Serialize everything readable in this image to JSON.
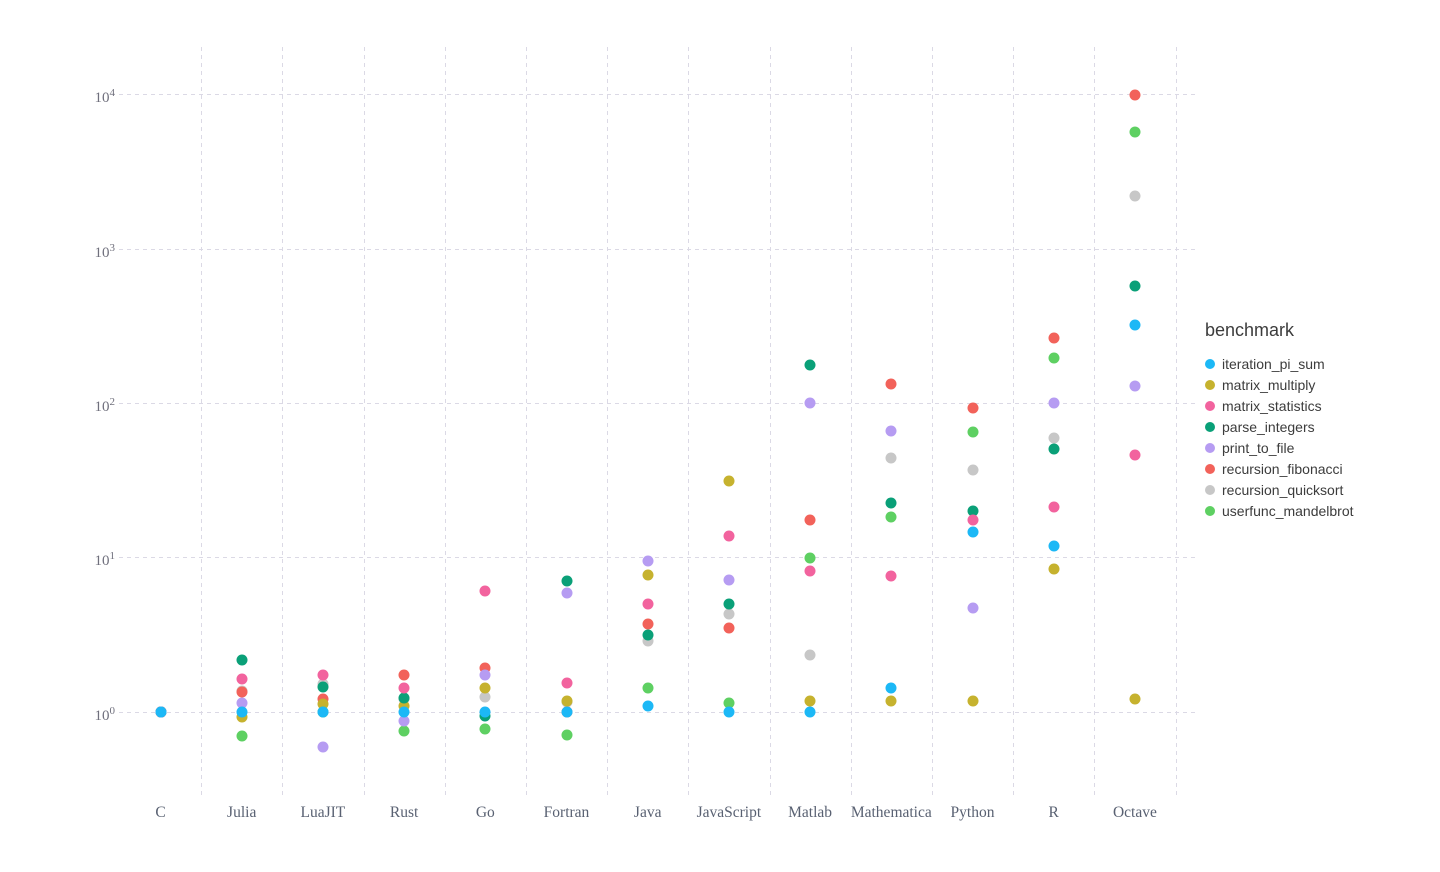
{
  "chart_data": {
    "type": "scatter",
    "title": "",
    "x_axis": {
      "categories": [
        "C",
        "Julia",
        "LuaJIT",
        "Rust",
        "Go",
        "Fortran",
        "Java",
        "JavaScript",
        "Matlab",
        "Mathematica",
        "Python",
        "R",
        "Octave"
      ]
    },
    "y_axis": {
      "scale": "log10",
      "ticks": [
        {
          "base": "10",
          "exp": "0"
        },
        {
          "base": "10",
          "exp": "1"
        },
        {
          "base": "10",
          "exp": "2"
        },
        {
          "base": "10",
          "exp": "3"
        },
        {
          "base": "10",
          "exp": "4"
        }
      ],
      "range_exponents": [
        0,
        4
      ]
    },
    "legend": {
      "title": "benchmark",
      "position": "right"
    },
    "grid": "dashed",
    "series": [
      {
        "name": "iteration_pi_sum",
        "color": "#1cb8f6",
        "values": [
          1.0,
          1.0,
          1.0,
          1.0,
          1.0,
          1.0,
          1.08,
          1.0,
          1.0,
          1.43,
          14.6,
          11.8,
          320
        ]
      },
      {
        "name": "matrix_multiply",
        "color": "#c6b22e",
        "values": [
          1.0,
          0.92,
          1.12,
          1.09,
          1.43,
          1.17,
          7.7,
          31.0,
          1.17,
          1.17,
          1.17,
          8.4,
          1.2
        ]
      },
      {
        "name": "matrix_statistics",
        "color": "#f2639e",
        "values": [
          1.0,
          1.62,
          1.73,
          1.43,
          6.0,
          1.54,
          5.0,
          13.7,
          8.1,
          7.5,
          17.5,
          21.0,
          46
        ]
      },
      {
        "name": "parse_integers",
        "color": "#0aa078",
        "values": [
          1.0,
          2.16,
          1.45,
          1.23,
          0.94,
          7.0,
          3.15,
          5.0,
          177,
          22.4,
          20.0,
          50.0,
          574
        ]
      },
      {
        "name": "print_to_file",
        "color": "#b69cf2",
        "values": [
          1.0,
          1.13,
          0.59,
          0.87,
          1.73,
          5.85,
          9.5,
          7.1,
          100,
          66.0,
          4.7,
          100,
          129
        ]
      },
      {
        "name": "recursion_fibonacci",
        "color": "#f2625a",
        "values": [
          1.0,
          1.33,
          1.2,
          1.73,
          1.91,
          0.99,
          3.7,
          3.5,
          17.5,
          132,
          93.0,
          262,
          9900
        ]
      },
      {
        "name": "recursion_quicksort",
        "color": "#c7c7c7",
        "values": [
          1.0,
          1.35,
          1.51,
          1.2,
          1.24,
          1.16,
          2.87,
          4.3,
          2.33,
          44.0,
          37.0,
          59.0,
          2190
        ]
      },
      {
        "name": "userfunc_mandelbrot",
        "color": "#5ed062",
        "values": [
          1.0,
          0.69,
          1.0,
          0.75,
          0.77,
          0.7,
          1.43,
          1.13,
          9.9,
          18.1,
          65.0,
          195,
          5720
        ]
      }
    ],
    "draw_order": [
      "recursion_quicksort",
      "recursion_fibonacci",
      "matrix_multiply",
      "userfunc_mandelbrot",
      "parse_integers",
      "print_to_file",
      "matrix_statistics",
      "iteration_pi_sum"
    ]
  }
}
